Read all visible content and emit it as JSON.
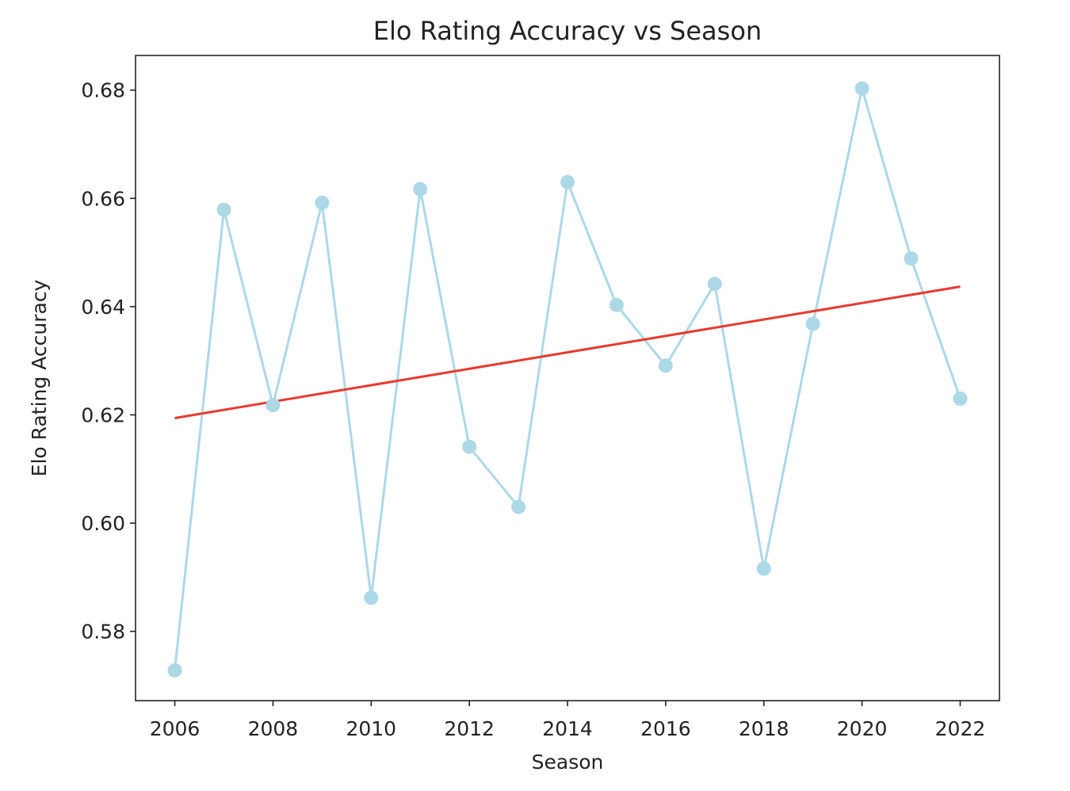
{
  "chart_data": {
    "type": "line",
    "title": "Elo Rating Accuracy vs Season",
    "xlabel": "Season",
    "ylabel": "Elo Rating Accuracy",
    "xlim": [
      2005.2,
      2022.8
    ],
    "ylim": [
      0.5672,
      0.6864
    ],
    "xticks": [
      2006,
      2008,
      2010,
      2012,
      2014,
      2016,
      2018,
      2020,
      2022
    ],
    "yticks": [
      0.58,
      0.6,
      0.62,
      0.64,
      0.66,
      0.68
    ],
    "grid": false,
    "series": [
      {
        "style": "line-with-markers",
        "color": "#add8e6",
        "x": [
          2006,
          2007,
          2008,
          2009,
          2010,
          2011,
          2012,
          2013,
          2014,
          2015,
          2016,
          2017,
          2018,
          2019,
          2020,
          2021,
          2022
        ],
        "y": [
          0.5728,
          0.6579,
          0.6218,
          0.6592,
          0.5862,
          0.6617,
          0.6141,
          0.603,
          0.663,
          0.6403,
          0.6291,
          0.6442,
          0.5916,
          0.6368,
          0.6803,
          0.6489,
          0.623
        ]
      },
      {
        "style": "trend-line",
        "color": "#e8392f",
        "x": [
          2006,
          2022
        ],
        "y": [
          0.6194,
          0.6437
        ]
      }
    ]
  }
}
